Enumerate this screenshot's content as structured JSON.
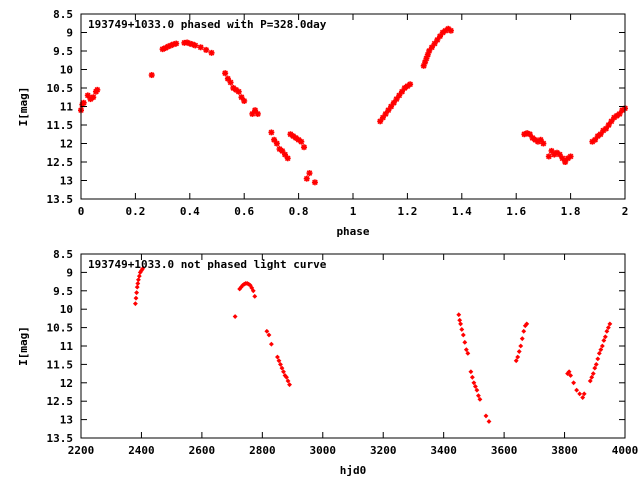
{
  "chart_data": [
    {
      "type": "scatter",
      "title": "193749+1033.0 phased with P=328.0day",
      "xlabel": "phase",
      "ylabel": "I[mag]",
      "xlim": [
        0,
        2
      ],
      "ylim": [
        8.5,
        13.5
      ],
      "y_inverted": true,
      "xticks": [
        0,
        0.2,
        0.4,
        0.6,
        0.8,
        1,
        1.2,
        1.4,
        1.6,
        1.8,
        2
      ],
      "xtick_labels": [
        "0",
        "0.2",
        "0.4",
        "0.6",
        "0.8",
        "1",
        "1.2",
        "1.4",
        "1.6",
        "1.8",
        "2"
      ],
      "yticks": [
        8.5,
        9,
        9.5,
        10,
        10.5,
        11,
        11.5,
        12,
        12.5,
        13,
        13.5
      ],
      "ytick_labels": [
        "8.5",
        "9",
        "9.5",
        "10",
        "10.5",
        "11",
        "11.5",
        "12",
        "12.5",
        "13",
        "13.5"
      ],
      "grid": false,
      "color": "#ff0000",
      "marker": "star",
      "series": [
        {
          "points": [
            [
              0.0,
              11.1
            ],
            [
              0.005,
              10.95
            ],
            [
              0.01,
              10.9
            ],
            [
              0.025,
              10.7
            ],
            [
              0.035,
              10.8
            ],
            [
              0.045,
              10.75
            ],
            [
              0.055,
              10.6
            ],
            [
              0.06,
              10.55
            ],
            [
              0.26,
              10.15
            ],
            [
              0.3,
              9.45
            ],
            [
              0.31,
              9.42
            ],
            [
              0.32,
              9.38
            ],
            [
              0.33,
              9.35
            ],
            [
              0.34,
              9.32
            ],
            [
              0.35,
              9.3
            ],
            [
              0.38,
              9.28
            ],
            [
              0.39,
              9.27
            ],
            [
              0.4,
              9.3
            ],
            [
              0.41,
              9.32
            ],
            [
              0.42,
              9.35
            ],
            [
              0.44,
              9.4
            ],
            [
              0.46,
              9.47
            ],
            [
              0.48,
              9.55
            ],
            [
              0.53,
              10.1
            ],
            [
              0.54,
              10.25
            ],
            [
              0.55,
              10.35
            ],
            [
              0.56,
              10.5
            ],
            [
              0.57,
              10.55
            ],
            [
              0.58,
              10.6
            ],
            [
              0.59,
              10.75
            ],
            [
              0.6,
              10.85
            ],
            [
              0.63,
              11.2
            ],
            [
              0.64,
              11.1
            ],
            [
              0.65,
              11.2
            ],
            [
              0.7,
              11.7
            ],
            [
              0.71,
              11.9
            ],
            [
              0.72,
              12.0
            ],
            [
              0.73,
              12.15
            ],
            [
              0.74,
              12.2
            ],
            [
              0.75,
              12.3
            ],
            [
              0.76,
              12.4
            ],
            [
              0.77,
              11.75
            ],
            [
              0.78,
              11.8
            ],
            [
              0.79,
              11.85
            ],
            [
              0.8,
              11.9
            ],
            [
              0.81,
              11.95
            ],
            [
              0.82,
              12.1
            ],
            [
              0.83,
              12.95
            ],
            [
              0.84,
              12.8
            ],
            [
              0.86,
              13.05
            ],
            [
              1.1,
              11.4
            ],
            [
              1.11,
              11.3
            ],
            [
              1.12,
              11.2
            ],
            [
              1.13,
              11.1
            ],
            [
              1.14,
              11.0
            ],
            [
              1.15,
              10.9
            ],
            [
              1.16,
              10.8
            ],
            [
              1.17,
              10.7
            ],
            [
              1.18,
              10.6
            ],
            [
              1.19,
              10.5
            ],
            [
              1.2,
              10.45
            ],
            [
              1.21,
              10.4
            ],
            [
              1.26,
              9.9
            ],
            [
              1.265,
              9.8
            ],
            [
              1.27,
              9.7
            ],
            [
              1.275,
              9.6
            ],
            [
              1.28,
              9.5
            ],
            [
              1.29,
              9.4
            ],
            [
              1.3,
              9.3
            ],
            [
              1.31,
              9.2
            ],
            [
              1.32,
              9.1
            ],
            [
              1.33,
              9.0
            ],
            [
              1.34,
              8.95
            ],
            [
              1.35,
              8.9
            ],
            [
              1.36,
              8.95
            ],
            [
              1.63,
              11.75
            ],
            [
              1.64,
              11.72
            ],
            [
              1.65,
              11.75
            ],
            [
              1.66,
              11.85
            ],
            [
              1.67,
              11.9
            ],
            [
              1.68,
              11.95
            ],
            [
              1.69,
              11.9
            ],
            [
              1.7,
              12.0
            ],
            [
              1.72,
              12.35
            ],
            [
              1.73,
              12.2
            ],
            [
              1.74,
              12.3
            ],
            [
              1.75,
              12.25
            ],
            [
              1.76,
              12.3
            ],
            [
              1.77,
              12.4
            ],
            [
              1.78,
              12.5
            ],
            [
              1.79,
              12.4
            ],
            [
              1.8,
              12.35
            ],
            [
              1.88,
              11.95
            ],
            [
              1.89,
              11.9
            ],
            [
              1.9,
              11.8
            ],
            [
              1.91,
              11.75
            ],
            [
              1.92,
              11.65
            ],
            [
              1.93,
              11.6
            ],
            [
              1.94,
              11.5
            ],
            [
              1.95,
              11.4
            ],
            [
              1.96,
              11.3
            ],
            [
              1.97,
              11.25
            ],
            [
              1.98,
              11.2
            ],
            [
              1.99,
              11.1
            ],
            [
              2.0,
              11.05
            ]
          ]
        }
      ]
    },
    {
      "type": "scatter",
      "title": "193749+1033.0 not phased light curve",
      "xlabel": "hjd0",
      "ylabel": "I[mag]",
      "xlim": [
        2200,
        4000
      ],
      "ylim": [
        8.5,
        13.5
      ],
      "y_inverted": true,
      "xticks": [
        2200,
        2400,
        2600,
        2800,
        3000,
        3200,
        3400,
        3600,
        3800,
        4000
      ],
      "xtick_labels": [
        "2200",
        "2400",
        "2600",
        "2800",
        "3000",
        "3200",
        "3400",
        "3600",
        "3800",
        "4000"
      ],
      "yticks": [
        8.5,
        9,
        9.5,
        10,
        10.5,
        11,
        11.5,
        12,
        12.5,
        13,
        13.5
      ],
      "ytick_labels": [
        "8.5",
        "9",
        "9.5",
        "10",
        "10.5",
        "11",
        "11.5",
        "12",
        "12.5",
        "13",
        "13.5"
      ],
      "grid": false,
      "color": "#ff0000",
      "marker": "diamond",
      "series": [
        {
          "points": [
            [
              2380,
              9.85
            ],
            [
              2382,
              9.7
            ],
            [
              2384,
              9.55
            ],
            [
              2386,
              9.4
            ],
            [
              2388,
              9.3
            ],
            [
              2390,
              9.2
            ],
            [
              2393,
              9.1
            ],
            [
              2396,
              9.0
            ],
            [
              2400,
              8.95
            ],
            [
              2404,
              8.9
            ],
            [
              2710,
              10.2
            ],
            [
              2725,
              9.45
            ],
            [
              2730,
              9.4
            ],
            [
              2735,
              9.35
            ],
            [
              2740,
              9.32
            ],
            [
              2745,
              9.3
            ],
            [
              2750,
              9.3
            ],
            [
              2755,
              9.32
            ],
            [
              2760,
              9.35
            ],
            [
              2765,
              9.42
            ],
            [
              2770,
              9.5
            ],
            [
              2775,
              9.65
            ],
            [
              2815,
              10.6
            ],
            [
              2822,
              10.7
            ],
            [
              2830,
              10.95
            ],
            [
              2850,
              11.3
            ],
            [
              2855,
              11.4
            ],
            [
              2860,
              11.5
            ],
            [
              2865,
              11.6
            ],
            [
              2870,
              11.7
            ],
            [
              2875,
              11.8
            ],
            [
              2880,
              11.85
            ],
            [
              2885,
              11.95
            ],
            [
              2890,
              12.05
            ],
            [
              3450,
              10.15
            ],
            [
              3453,
              10.3
            ],
            [
              3456,
              10.4
            ],
            [
              3460,
              10.55
            ],
            [
              3465,
              10.7
            ],
            [
              3470,
              10.9
            ],
            [
              3475,
              11.1
            ],
            [
              3480,
              11.2
            ],
            [
              3490,
              11.7
            ],
            [
              3495,
              11.85
            ],
            [
              3500,
              12.0
            ],
            [
              3505,
              12.1
            ],
            [
              3510,
              12.2
            ],
            [
              3515,
              12.35
            ],
            [
              3520,
              12.45
            ],
            [
              3540,
              12.9
            ],
            [
              3550,
              13.05
            ],
            [
              3640,
              11.4
            ],
            [
              3645,
              11.3
            ],
            [
              3650,
              11.15
            ],
            [
              3655,
              11.0
            ],
            [
              3660,
              10.8
            ],
            [
              3665,
              10.6
            ],
            [
              3670,
              10.45
            ],
            [
              3675,
              10.4
            ],
            [
              3810,
              11.75
            ],
            [
              3815,
              11.7
            ],
            [
              3820,
              11.8
            ],
            [
              3830,
              12.0
            ],
            [
              3840,
              12.2
            ],
            [
              3850,
              12.3
            ],
            [
              3860,
              12.4
            ],
            [
              3865,
              12.3
            ],
            [
              3885,
              11.95
            ],
            [
              3890,
              11.85
            ],
            [
              3895,
              11.75
            ],
            [
              3900,
              11.6
            ],
            [
              3905,
              11.5
            ],
            [
              3910,
              11.35
            ],
            [
              3915,
              11.2
            ],
            [
              3920,
              11.1
            ],
            [
              3925,
              11.0
            ],
            [
              3930,
              10.85
            ],
            [
              3935,
              10.75
            ],
            [
              3940,
              10.6
            ],
            [
              3945,
              10.5
            ],
            [
              3950,
              10.4
            ]
          ]
        }
      ]
    }
  ]
}
